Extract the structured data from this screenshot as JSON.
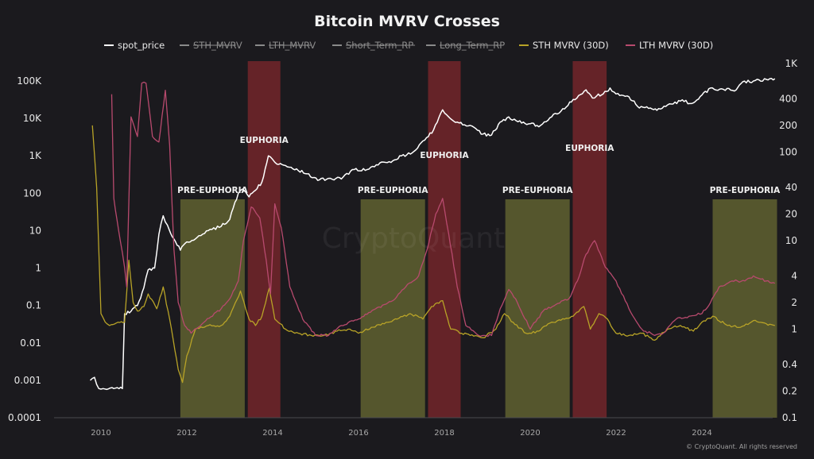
{
  "chart_data": {
    "type": "line",
    "title": "Bitcoin MVRV Crosses",
    "watermark": "CryptoQuant",
    "footer": "© CryptoQuant. All rights reserved",
    "x_ticks": [
      "2010",
      "2012",
      "2014",
      "2016",
      "2018",
      "2020",
      "2022",
      "2024"
    ],
    "x_range": [
      2009.0,
      2025.9
    ],
    "y_left": {
      "scale": "log",
      "range": [
        0.0001,
        100000
      ],
      "ticks": [
        {
          "v": 0.0001,
          "label": "0.0001"
        },
        {
          "v": 0.001,
          "label": "0.001"
        },
        {
          "v": 0.01,
          "label": "0.01"
        },
        {
          "v": 0.1,
          "label": "0.1"
        },
        {
          "v": 1,
          "label": "1"
        },
        {
          "v": 10,
          "label": "10"
        },
        {
          "v": 100,
          "label": "100"
        },
        {
          "v": 1000,
          "label": "1K"
        },
        {
          "v": 10000,
          "label": "10K"
        },
        {
          "v": 100000,
          "label": "100K"
        }
      ]
    },
    "y_right": {
      "scale": "log",
      "range": [
        0.1,
        1000
      ],
      "ticks": [
        {
          "v": 0.1,
          "label": "0.1"
        },
        {
          "v": 0.2,
          "label": "0.2"
        },
        {
          "v": 0.4,
          "label": "0.4"
        },
        {
          "v": 1,
          "label": "1"
        },
        {
          "v": 2,
          "label": "2"
        },
        {
          "v": 4,
          "label": "4"
        },
        {
          "v": 10,
          "label": "10"
        },
        {
          "v": 20,
          "label": "20"
        },
        {
          "v": 40,
          "label": "40"
        },
        {
          "v": 100,
          "label": "100"
        },
        {
          "v": 200,
          "label": "200"
        },
        {
          "v": 400,
          "label": "400"
        },
        {
          "v": 1000,
          "label": "1K"
        }
      ]
    },
    "legend": {
      "placement": "top-center",
      "items": [
        {
          "label": "spot_price",
          "color": "#ffffff",
          "hidden": false
        },
        {
          "label": "STH_MVRV",
          "color": "#8a8a8a",
          "hidden": true
        },
        {
          "label": "LTH_MVRV",
          "color": "#8a8a8a",
          "hidden": true
        },
        {
          "label": "Short_Term_RP",
          "color": "#8a8a8a",
          "hidden": true
        },
        {
          "label": "Long_Term_RP",
          "color": "#8a8a8a",
          "hidden": true
        },
        {
          "label": "STH MVRV (30D)",
          "color": "#b8a327",
          "hidden": false
        },
        {
          "label": "LTH MVRV (30D)",
          "color": "#b84a6e",
          "hidden": false
        }
      ]
    },
    "bands": [
      {
        "label": "PRE-EUPHORIA",
        "kind": "pre",
        "x0": 2011.85,
        "x1": 2013.35,
        "color": "#5f6130"
      },
      {
        "label": "EUPHORIA",
        "kind": "euph",
        "x0": 2013.42,
        "x1": 2014.18,
        "color": "#6e2529"
      },
      {
        "label": "PRE-EUPHORIA",
        "kind": "pre",
        "x0": 2016.05,
        "x1": 2017.55,
        "color": "#5f6130"
      },
      {
        "label": "EUPHORIA",
        "kind": "euph",
        "x0": 2017.62,
        "x1": 2018.38,
        "color": "#6e2529"
      },
      {
        "label": "PRE-EUPHORIA",
        "kind": "pre",
        "x0": 2019.42,
        "x1": 2020.92,
        "color": "#5f6130"
      },
      {
        "label": "EUPHORIA",
        "kind": "euph",
        "x0": 2020.99,
        "x1": 2021.78,
        "color": "#6e2529"
      },
      {
        "label": "PRE-EUPHORIA",
        "kind": "pre",
        "x0": 2024.25,
        "x1": 2025.75,
        "color": "#5f6130"
      }
    ],
    "series": [
      {
        "name": "spot_price",
        "axis": "left",
        "color": "#ffffff",
        "x": [
          2009.75,
          2009.85,
          2009.95,
          2010.05,
          2010.3,
          2010.5,
          2010.55,
          2010.7,
          2010.85,
          2011.0,
          2011.1,
          2011.25,
          2011.35,
          2011.45,
          2011.55,
          2011.7,
          2011.85,
          2012.0,
          2012.2,
          2012.5,
          2012.8,
          2013.0,
          2013.2,
          2013.3,
          2013.45,
          2013.6,
          2013.75,
          2013.9,
          2014.0,
          2014.1,
          2014.3,
          2014.6,
          2014.8,
          2015.05,
          2015.3,
          2015.6,
          2015.9,
          2016.2,
          2016.5,
          2016.8,
          2017.0,
          2017.25,
          2017.5,
          2017.75,
          2017.96,
          2018.1,
          2018.3,
          2018.6,
          2018.9,
          2019.1,
          2019.3,
          2019.5,
          2019.8,
          2020.0,
          2020.2,
          2020.5,
          2020.8,
          2021.0,
          2021.3,
          2021.45,
          2021.55,
          2021.7,
          2021.86,
          2022.0,
          2022.3,
          2022.5,
          2022.8,
          2022.95,
          2023.2,
          2023.5,
          2023.8,
          2024.0,
          2024.2,
          2024.5,
          2024.8,
          2024.95,
          2025.2,
          2025.5,
          2025.7
        ],
        "y": [
          0.001,
          0.0012,
          0.0006,
          0.0006,
          0.0006,
          0.0006,
          0.06,
          0.07,
          0.1,
          0.3,
          0.9,
          1.0,
          8,
          25,
          14,
          6,
          3,
          5,
          6,
          10,
          13,
          20,
          100,
          130,
          80,
          120,
          200,
          1000,
          800,
          600,
          550,
          400,
          330,
          220,
          250,
          240,
          430,
          430,
          650,
          740,
          1000,
          1200,
          2500,
          5000,
          17000,
          11000,
          8000,
          6500,
          3800,
          3600,
          8000,
          11000,
          7500,
          7200,
          6000,
          11000,
          18000,
          32000,
          58000,
          35000,
          40000,
          45000,
          65000,
          45000,
          38000,
          21000,
          19000,
          16500,
          23000,
          29000,
          26000,
          42000,
          65000,
          60000,
          58000,
          95000,
          100000,
          110000,
          115000
        ]
      },
      {
        "name": "STH MVRV (30D)",
        "axis": "right",
        "color": "#b8a327",
        "x": [
          2009.8,
          2009.9,
          2010.0,
          2010.1,
          2010.2,
          2010.4,
          2010.55,
          2010.65,
          2010.75,
          2010.85,
          2011.0,
          2011.1,
          2011.3,
          2011.45,
          2011.6,
          2011.8,
          2011.9,
          2012.0,
          2012.2,
          2012.5,
          2012.8,
          2013.0,
          2013.25,
          2013.45,
          2013.6,
          2013.75,
          2013.92,
          2014.05,
          2014.3,
          2014.6,
          2014.9,
          2015.2,
          2015.5,
          2015.8,
          2016.0,
          2016.3,
          2016.6,
          2016.9,
          2017.2,
          2017.5,
          2017.7,
          2017.96,
          2018.15,
          2018.4,
          2018.6,
          2018.9,
          2019.2,
          2019.4,
          2019.6,
          2019.9,
          2020.2,
          2020.5,
          2020.8,
          2021.0,
          2021.25,
          2021.4,
          2021.6,
          2021.8,
          2022.0,
          2022.3,
          2022.6,
          2022.9,
          2023.2,
          2023.5,
          2023.8,
          2024.0,
          2024.25,
          2024.6,
          2024.9,
          2025.2,
          2025.5,
          2025.7
        ],
        "y": [
          200,
          40,
          1.5,
          1.2,
          1.1,
          1.2,
          1.2,
          6,
          2.0,
          1.6,
          1.8,
          2.5,
          1.7,
          3.0,
          1.3,
          0.35,
          0.25,
          0.5,
          1.0,
          1.1,
          1.1,
          1.4,
          2.7,
          1.3,
          1.1,
          1.4,
          2.9,
          1.3,
          1.0,
          0.9,
          0.85,
          0.85,
          0.95,
          1.0,
          0.9,
          1.05,
          1.15,
          1.3,
          1.5,
          1.3,
          1.8,
          2.1,
          1.0,
          0.9,
          0.85,
          0.8,
          1.0,
          1.5,
          1.2,
          0.9,
          0.95,
          1.2,
          1.3,
          1.4,
          1.8,
          1.0,
          1.5,
          1.3,
          0.9,
          0.85,
          0.9,
          0.75,
          1.0,
          1.1,
          0.95,
          1.2,
          1.4,
          1.1,
          1.05,
          1.25,
          1.15,
          1.1
        ]
      },
      {
        "name": "LTH MVRV (30D)",
        "axis": "right",
        "color": "#b84a6e",
        "x": [
          2010.25,
          2010.3,
          2010.45,
          2010.55,
          2010.6,
          2010.7,
          2010.85,
          2010.95,
          2011.05,
          2011.2,
          2011.35,
          2011.5,
          2011.6,
          2011.7,
          2011.8,
          2011.95,
          2012.1,
          2012.4,
          2012.8,
          2013.0,
          2013.2,
          2013.32,
          2013.5,
          2013.7,
          2013.85,
          2013.95,
          2014.05,
          2014.2,
          2014.4,
          2014.7,
          2015.0,
          2015.3,
          2015.6,
          2016.0,
          2016.4,
          2016.8,
          2017.1,
          2017.4,
          2017.6,
          2017.8,
          2017.96,
          2018.1,
          2018.3,
          2018.5,
          2018.8,
          2019.1,
          2019.3,
          2019.5,
          2019.7,
          2020.0,
          2020.3,
          2020.6,
          2020.9,
          2021.1,
          2021.3,
          2021.5,
          2021.75,
          2022.0,
          2022.3,
          2022.6,
          2022.9,
          2023.1,
          2023.4,
          2023.7,
          2024.0,
          2024.2,
          2024.4,
          2024.7,
          2025.0,
          2025.2,
          2025.5,
          2025.7
        ],
        "y": [
          450,
          30,
          10,
          5,
          3,
          250,
          150,
          600,
          600,
          150,
          130,
          500,
          120,
          8,
          2,
          1.1,
          0.9,
          1.2,
          1.7,
          2.2,
          3.5,
          10,
          24,
          18,
          6,
          2.5,
          26,
          14,
          3.0,
          1.3,
          0.85,
          0.85,
          1.1,
          1.3,
          1.7,
          2.1,
          3.0,
          4.0,
          8,
          20,
          30,
          12,
          3.0,
          1.1,
          0.85,
          0.85,
          1.7,
          2.8,
          2.0,
          1.0,
          1.6,
          1.9,
          2.2,
          3.5,
          7,
          10,
          5,
          3.5,
          1.7,
          1.0,
          0.85,
          0.9,
          1.3,
          1.4,
          1.5,
          2.0,
          3.0,
          3.5,
          3.5,
          4.0,
          3.5,
          3.3
        ]
      }
    ]
  }
}
